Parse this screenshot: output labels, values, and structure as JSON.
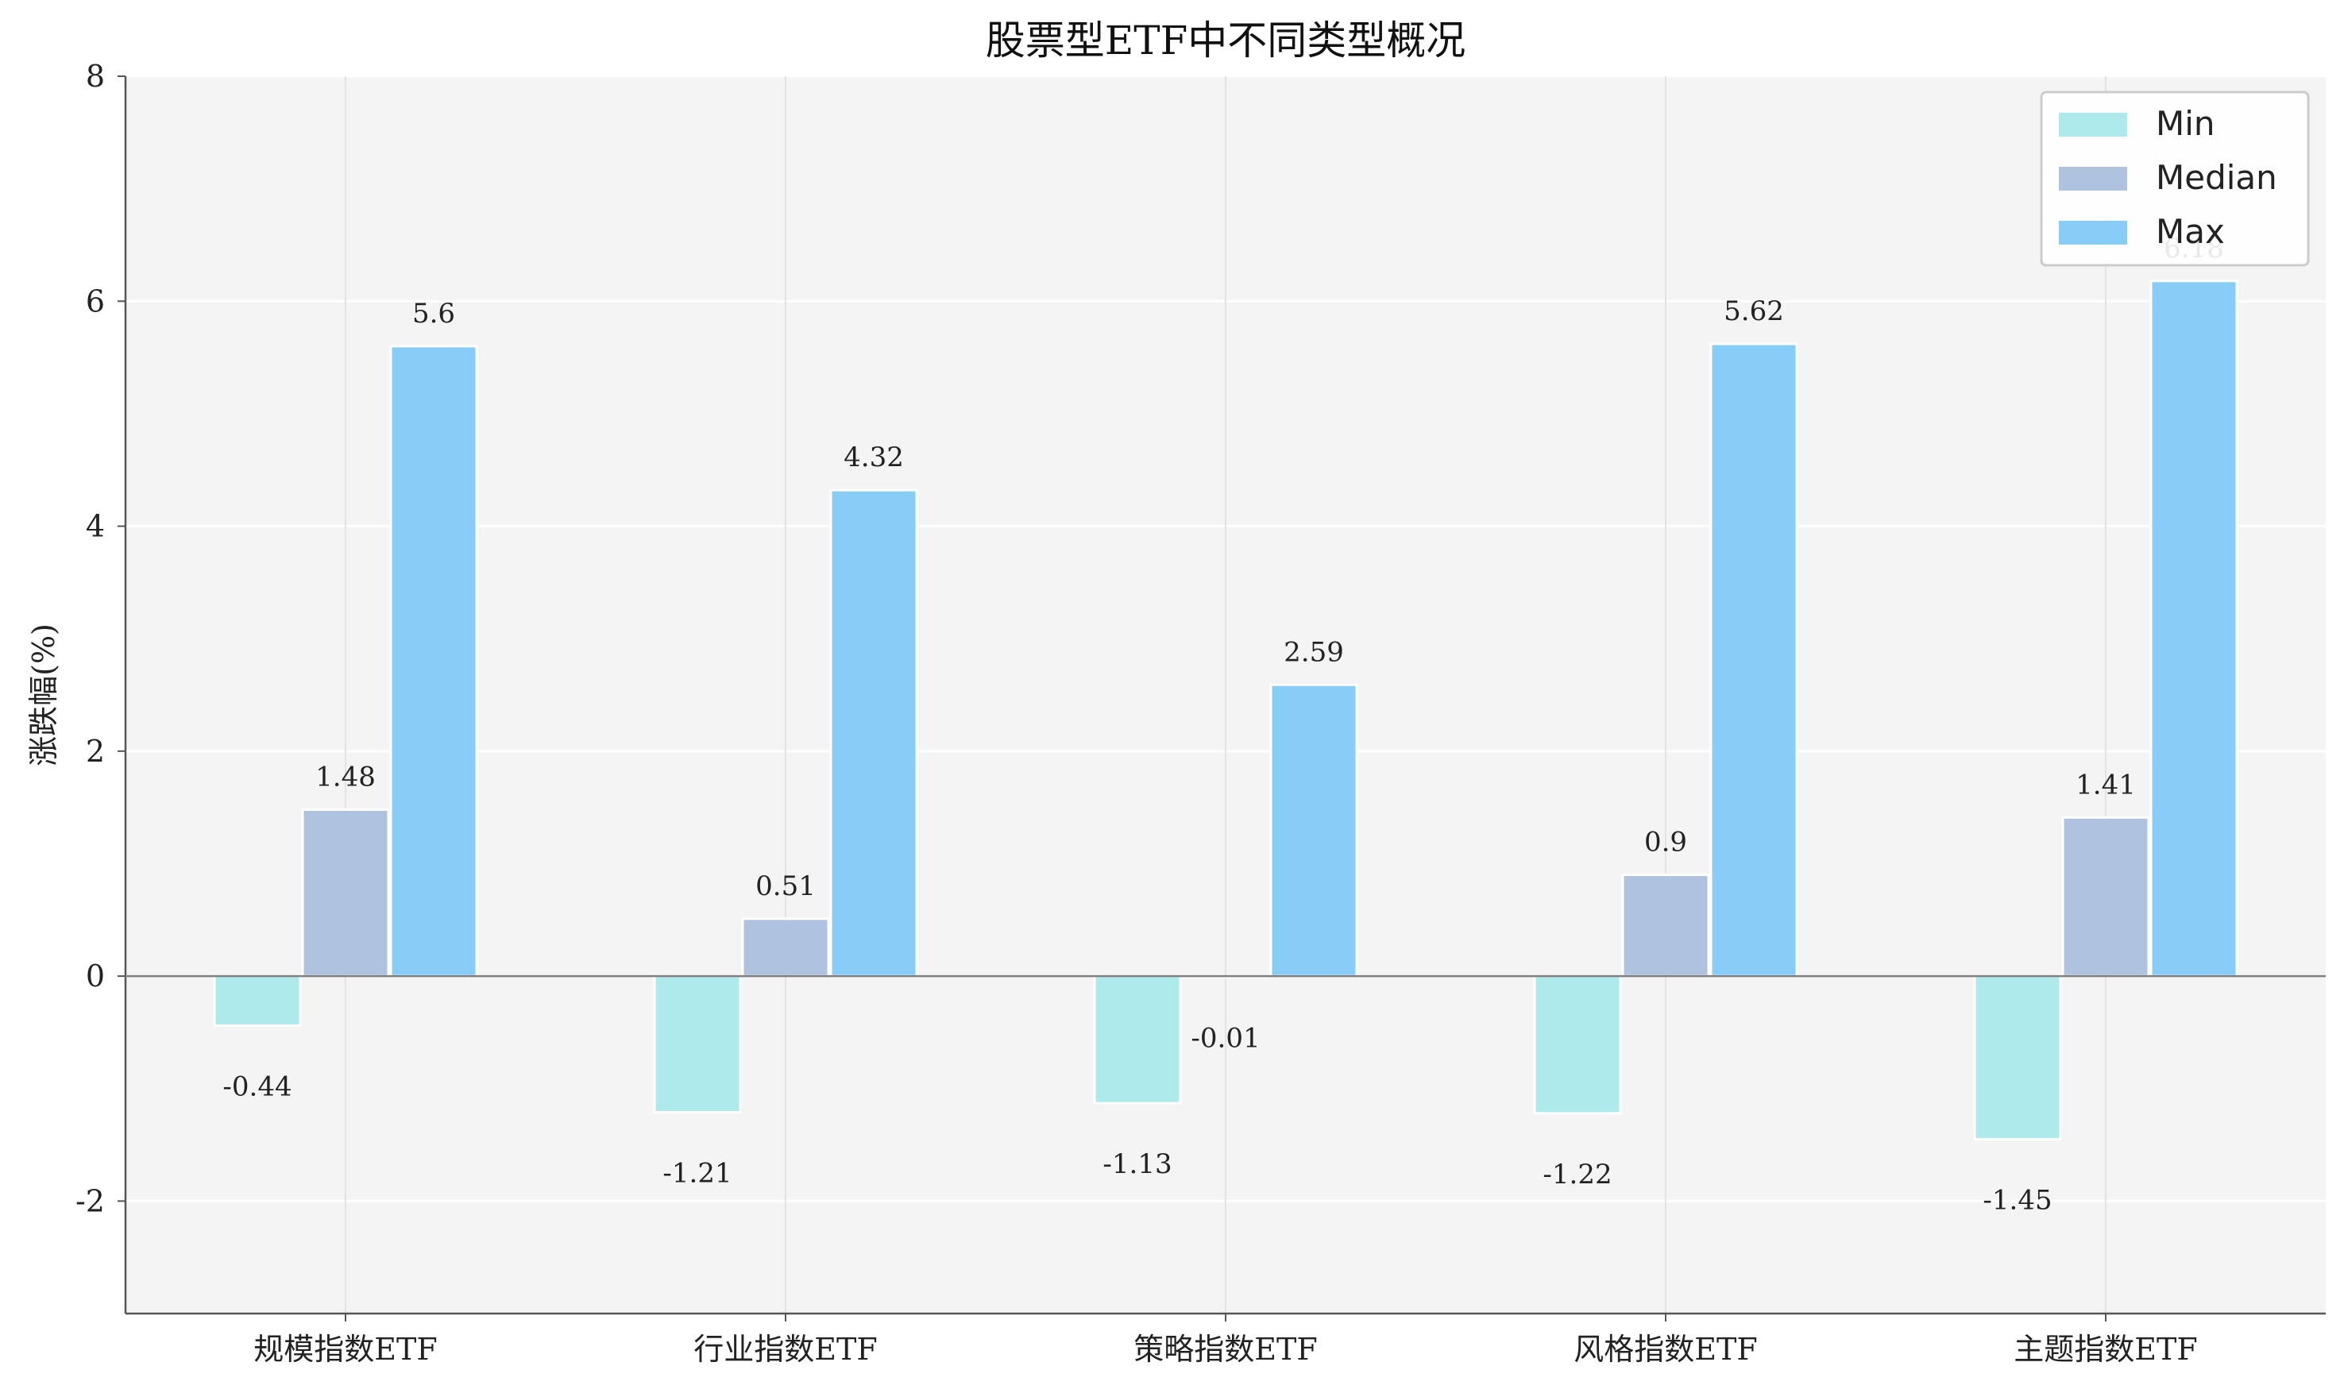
{
  "chart_data": {
    "type": "bar",
    "title": "股票型ETF中不同类型概况",
    "xlabel": "",
    "ylabel": "涨跌幅(%)",
    "ylim": [
      -3,
      8
    ],
    "yticks": [
      -2,
      0,
      2,
      4,
      6,
      8
    ],
    "grid": true,
    "legend_position": "top-right",
    "categories": [
      "规模指数ETF",
      "行业指数ETF",
      "策略指数ETF",
      "风格指数ETF",
      "主题指数ETF"
    ],
    "series": [
      {
        "name": "Min",
        "color": "#aeeaec",
        "values": [
          -0.44,
          -1.21,
          -1.13,
          -1.22,
          -1.45
        ],
        "labels": [
          "-0.44",
          "-1.21",
          "-1.13",
          "-1.22",
          "-1.45"
        ]
      },
      {
        "name": "Median",
        "color": "#b0c3de",
        "values": [
          1.48,
          0.51,
          -0.01,
          0.9,
          1.41
        ],
        "labels": [
          "1.48",
          "0.51",
          "-0.01",
          "0.9",
          "1.41"
        ]
      },
      {
        "name": "Max",
        "color": "#88cdf8",
        "values": [
          5.6,
          4.32,
          2.59,
          5.62,
          6.18
        ],
        "labels": [
          "5.6",
          "4.32",
          "2.59",
          "5.62",
          "6.18"
        ]
      }
    ]
  }
}
